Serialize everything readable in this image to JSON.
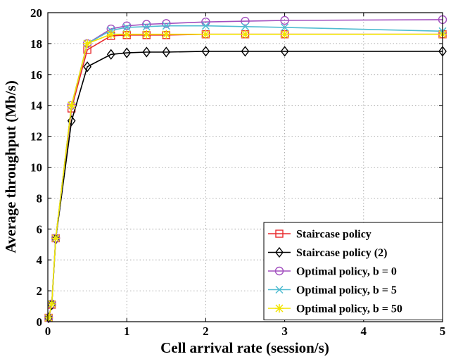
{
  "chart_data": {
    "type": "line",
    "title": "",
    "xlabel": "Cell arrival rate (session/s)",
    "ylabel": "Average throughput (Mb/s)",
    "xlim": [
      0,
      5
    ],
    "ylim": [
      0,
      20
    ],
    "xticks": [
      0,
      1,
      2,
      3,
      4,
      5
    ],
    "yticks": [
      0,
      2,
      4,
      6,
      8,
      10,
      12,
      14,
      16,
      18,
      20
    ],
    "grid": true,
    "legend_position": "bottom-right",
    "series": [
      {
        "name": "Staircase policy",
        "color": "#e8282b",
        "marker": "square",
        "x": [
          0.01,
          0.05,
          0.1,
          0.3,
          0.5,
          0.8,
          1.0,
          1.25,
          1.5,
          2.0,
          2.5,
          3.0,
          5.0
        ],
        "y": [
          0.25,
          1.1,
          5.4,
          13.8,
          17.6,
          18.5,
          18.55,
          18.55,
          18.55,
          18.6,
          18.6,
          18.6,
          18.6
        ]
      },
      {
        "name": "Staircase policy (2)",
        "color": "#000000",
        "marker": "diamond",
        "x": [
          0.01,
          0.05,
          0.1,
          0.3,
          0.5,
          0.8,
          1.0,
          1.25,
          1.5,
          2.0,
          2.5,
          3.0,
          5.0
        ],
        "y": [
          0.25,
          1.1,
          5.35,
          13.0,
          16.5,
          17.3,
          17.4,
          17.45,
          17.45,
          17.5,
          17.5,
          17.5,
          17.5
        ]
      },
      {
        "name": "Optimal policy, b = 0",
        "color": "#a24fbf",
        "marker": "circle",
        "x": [
          0.01,
          0.05,
          0.1,
          0.3,
          0.5,
          0.8,
          1.0,
          1.25,
          1.5,
          2.0,
          2.5,
          3.0,
          5.0
        ],
        "y": [
          0.25,
          1.15,
          5.4,
          14.0,
          18.0,
          18.95,
          19.15,
          19.25,
          19.3,
          19.4,
          19.45,
          19.5,
          19.55
        ]
      },
      {
        "name": "Optimal policy, b = 5",
        "color": "#4fbcd1",
        "marker": "x",
        "x": [
          0.01,
          0.05,
          0.1,
          0.3,
          0.5,
          0.8,
          1.0,
          1.25,
          1.5,
          2.0,
          2.5,
          3.0,
          5.0
        ],
        "y": [
          0.25,
          1.15,
          5.4,
          14.0,
          18.0,
          18.85,
          19.05,
          19.1,
          19.15,
          19.15,
          19.1,
          19.05,
          18.8
        ]
      },
      {
        "name": "Optimal policy, b = 50",
        "color": "#f2e400",
        "marker": "asterisk",
        "x": [
          0.01,
          0.05,
          0.1,
          0.3,
          0.5,
          0.8,
          1.0,
          1.25,
          1.5,
          2.0,
          2.5,
          3.0,
          5.0
        ],
        "y": [
          0.25,
          1.15,
          5.4,
          14.0,
          18.0,
          18.6,
          18.6,
          18.6,
          18.6,
          18.6,
          18.6,
          18.6,
          18.6
        ]
      }
    ]
  }
}
